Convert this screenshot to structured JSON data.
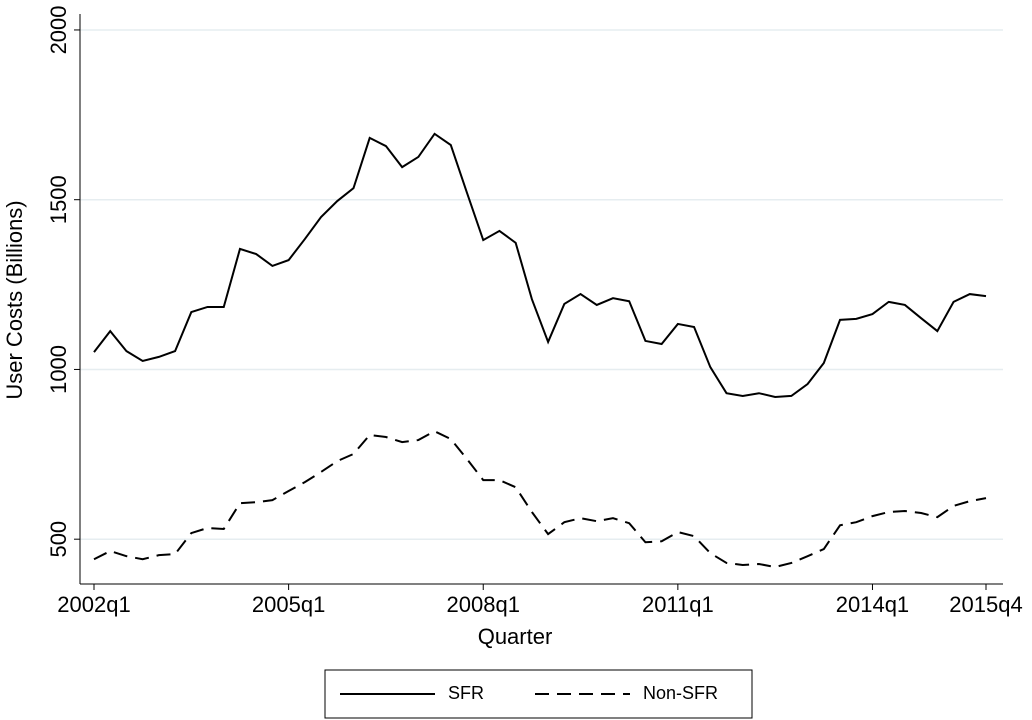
{
  "chart_data": {
    "type": "line",
    "x_label": "Quarter",
    "y_label": "User Costs (Billions)",
    "categories": [
      "2002q1",
      null,
      null,
      null,
      null,
      null,
      null,
      null,
      null,
      null,
      null,
      null,
      "2005q1",
      null,
      null,
      null,
      null,
      null,
      null,
      null,
      null,
      null,
      null,
      null,
      "2008q1",
      null,
      null,
      null,
      null,
      null,
      null,
      null,
      null,
      null,
      null,
      null,
      "2011q1",
      null,
      null,
      null,
      null,
      null,
      null,
      null,
      null,
      null,
      null,
      null,
      "2014q1",
      null,
      null,
      null,
      null,
      null,
      null,
      "2015q4"
    ],
    "series": [
      {
        "name": "SFR",
        "color": "#000000",
        "style": "solid",
        "values": [
          1051,
          1113,
          1054,
          1025,
          1037,
          1054,
          1169,
          1184,
          1184,
          1355,
          1340,
          1305,
          1322,
          1384,
          1449,
          1496,
          1534,
          1682,
          1658,
          1596,
          1626,
          1694,
          1661,
          1520,
          1381,
          1408,
          1373,
          1207,
          1081,
          1193,
          1222,
          1190,
          1210,
          1201,
          1084,
          1075,
          1134,
          1125,
          1007,
          930,
          922,
          930,
          919,
          922,
          957,
          1019,
          1146,
          1149,
          1163,
          1199,
          1190,
          1151,
          1113,
          1199,
          1222,
          1216
        ]
      },
      {
        "name": "Non-SFR",
        "color": "#000000",
        "style": "dashed",
        "values": [
          441,
          465,
          450,
          441,
          453,
          456,
          518,
          533,
          530,
          606,
          609,
          615,
          642,
          668,
          698,
          730,
          751,
          807,
          801,
          786,
          792,
          818,
          795,
          736,
          674,
          674,
          653,
          580,
          515,
          550,
          562,
          553,
          562,
          547,
          491,
          494,
          521,
          509,
          459,
          430,
          424,
          427,
          418,
          430,
          450,
          471,
          541,
          550,
          568,
          580,
          583,
          577,
          565,
          598,
          612,
          621
        ]
      }
    ],
    "ylim": [
      368,
      2047
    ],
    "yticks": [
      500,
      1000,
      1500,
      2000
    ],
    "grid": true,
    "legend": "bottom"
  }
}
